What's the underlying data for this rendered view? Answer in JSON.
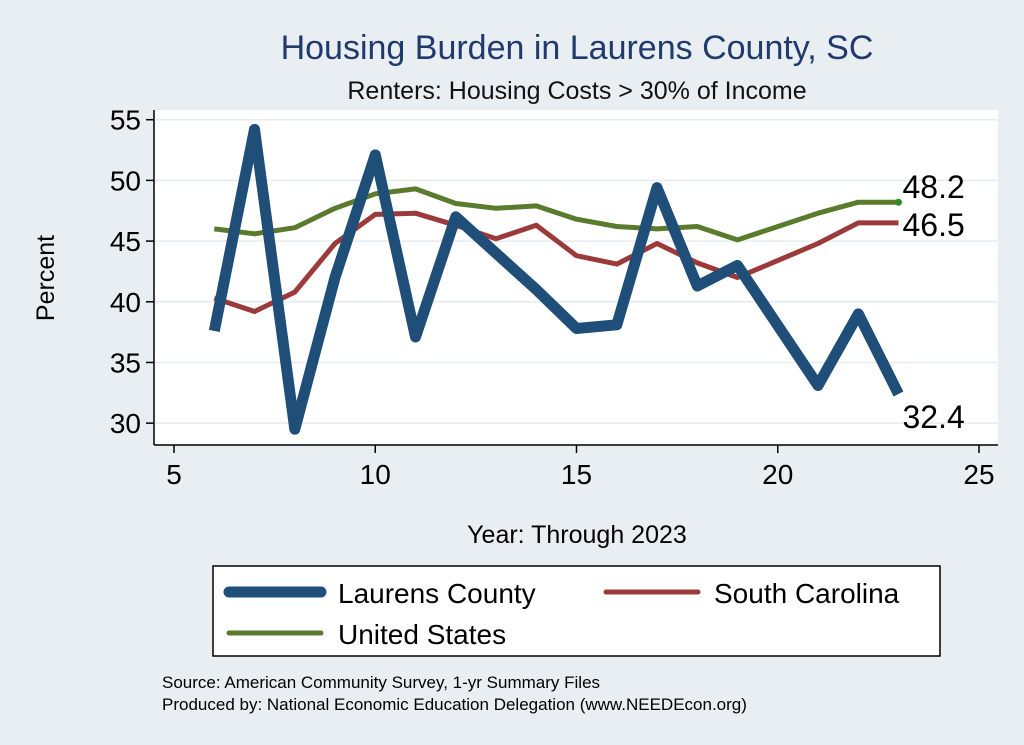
{
  "chart_data": {
    "type": "line",
    "title": "Housing Burden in Laurens County, SC",
    "subtitle": "Renters: Housing Costs > 30% of Income",
    "xlabel": "Year: Through 2023",
    "ylabel": "Percent",
    "xlim": [
      5,
      25
    ],
    "ylim": [
      28.2,
      55.8
    ],
    "x_ticks": [
      5,
      10,
      15,
      20,
      25
    ],
    "y_ticks": [
      30,
      35,
      40,
      45,
      50,
      55
    ],
    "grid": true,
    "legend_position": "bottom",
    "series": [
      {
        "name": "Laurens County",
        "color": "#1f4e79",
        "x": [
          6,
          7,
          8,
          9,
          10,
          11,
          12,
          13,
          14,
          15,
          16,
          17,
          18,
          19,
          21,
          22,
          23
        ],
        "y": [
          37.6,
          54.2,
          29.5,
          42.0,
          52.1,
          37.1,
          47.0,
          44.0,
          41.0,
          37.8,
          38.1,
          49.4,
          41.3,
          43.0,
          33.1,
          39.0,
          32.4
        ],
        "end_label": "32.4"
      },
      {
        "name": "South Carolina",
        "color": "#9b3a3a",
        "x": [
          6,
          7,
          8,
          9,
          10,
          11,
          12,
          13,
          14,
          15,
          16,
          17,
          18,
          19,
          21,
          22,
          23
        ],
        "y": [
          40.3,
          39.2,
          40.8,
          44.8,
          47.2,
          47.3,
          46.3,
          45.2,
          46.3,
          43.8,
          43.1,
          44.8,
          43.2,
          42.0,
          44.8,
          46.5,
          46.5
        ],
        "end_label": "46.5"
      },
      {
        "name": "United States",
        "color": "#5a7a2e",
        "x": [
          6,
          7,
          8,
          9,
          10,
          11,
          12,
          13,
          14,
          15,
          16,
          17,
          18,
          19,
          21,
          22,
          23
        ],
        "y": [
          46.0,
          45.6,
          46.1,
          47.7,
          48.9,
          49.3,
          48.1,
          47.7,
          47.9,
          46.8,
          46.2,
          46.0,
          46.2,
          45.1,
          47.3,
          48.2,
          48.2
        ],
        "end_label": "48.2"
      }
    ]
  },
  "source_lines": {
    "line1": "Source: American Community Survey, 1-yr Summary Files",
    "line2": "Produced by: National Economic Education Delegation (www.NEEDEcon.org)"
  }
}
